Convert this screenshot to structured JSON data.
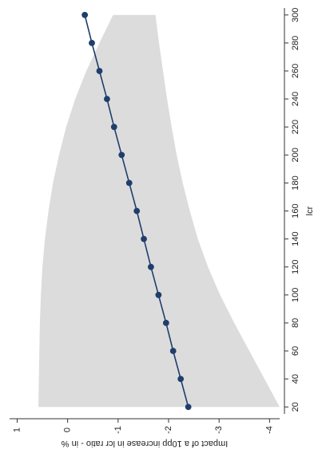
{
  "chart_data": {
    "type": "line",
    "orientation": "rotated-90-ccw",
    "title": "",
    "xlabel": "lcr",
    "ylabel": "Impact of a 10pp increase in lcr ratio - in %",
    "xlim": [
      15,
      305
    ],
    "ylim": [
      -4.2,
      1.15
    ],
    "xticks": [
      20,
      40,
      60,
      80,
      100,
      120,
      140,
      160,
      180,
      200,
      220,
      240,
      260,
      280,
      300
    ],
    "xtick_labels": [
      "20",
      "40",
      "60",
      "80",
      "100",
      "120",
      "140",
      "160",
      "180",
      "200",
      "220",
      "240",
      "260",
      "280",
      "300"
    ],
    "yticks": [
      1,
      0,
      -1,
      -2,
      -3,
      -4
    ],
    "ytick_labels": [
      "1",
      "0",
      "-1",
      "-2",
      "-3",
      "-4"
    ],
    "grid": false,
    "legend": "none",
    "x": [
      20,
      40,
      60,
      80,
      100,
      120,
      140,
      160,
      180,
      200,
      220,
      240,
      260,
      280,
      300
    ],
    "series": [
      {
        "values": [
          -2.39,
          -2.24,
          -2.09,
          -1.95,
          -1.8,
          -1.65,
          -1.51,
          -1.37,
          -1.22,
          -1.07,
          -0.92,
          -0.78,
          -0.63,
          -0.48,
          -0.34
        ]
      }
    ],
    "band": {
      "lower": [
        -4.2,
        -3.9,
        -3.6,
        -3.3,
        -3.02,
        -2.78,
        -2.58,
        -2.42,
        -2.28,
        -2.16,
        -2.06,
        -1.97,
        -1.89,
        -1.81,
        -1.74
      ],
      "upper": [
        0.58,
        0.57,
        0.56,
        0.55,
        0.53,
        0.5,
        0.45,
        0.38,
        0.29,
        0.17,
        0.03,
        -0.15,
        -0.37,
        -0.63,
        -0.9
      ]
    },
    "colors": {
      "line": "#1f3e6b",
      "marker": "#1f3e6b",
      "band": "#dcdcdc",
      "axis": "#333333"
    }
  }
}
